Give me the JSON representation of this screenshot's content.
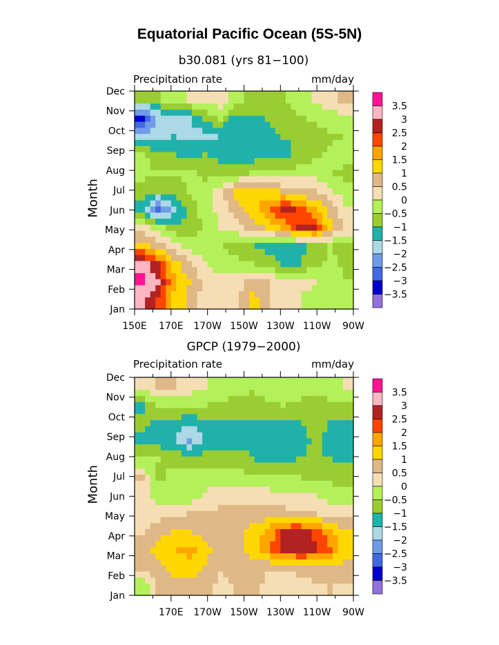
{
  "title": "Equatorial Pacific Ocean (5S-5N)",
  "colors": {
    "levels": [
      -3.5,
      -3,
      -2.5,
      -2,
      -1.5,
      -1,
      -0.5,
      0,
      0.5,
      1,
      1.5,
      2,
      2.5,
      3,
      3.5
    ],
    "fills": [
      "#9370db",
      "#0000cd",
      "#4169e1",
      "#6f9be8",
      "#add8e6",
      "#20b2aa",
      "#9acd32",
      "#b4f05a",
      "#f5deb3",
      "#deb887",
      "#ffd700",
      "#ffa500",
      "#ff4500",
      "#b22222",
      "#ffb6c1",
      "#ff1493"
    ]
  },
  "chart_data": [
    {
      "type": "heatmap",
      "title": "b30.081 (yrs 81−100)",
      "left_label": "Precipitation rate",
      "right_label": "mm/day",
      "ylabel": "Month",
      "x": [
        "150E",
        "170E",
        "170W",
        "150W",
        "130W",
        "110W",
        "90W"
      ],
      "y": [
        "Jan",
        "Feb",
        "Mar",
        "Apr",
        "May",
        "Jun",
        "Jul",
        "Aug",
        "Sep",
        "Oct",
        "Nov",
        "Dec"
      ],
      "colorbar_labels": [
        "3.5",
        "3",
        "2.5",
        "2",
        "1.5",
        "1",
        "0.5",
        "0",
        "−0.5",
        "−1",
        "−1.5",
        "−2",
        "−2.5",
        "−3",
        "−3.5"
      ],
      "values": [
        [
          3.0,
          2.4,
          1.4,
          0.8,
          0.2,
          0.0,
          0.3,
          1.3,
          0.6,
          0.2,
          0.0,
          -0.2,
          -0.3,
          -0.3
        ],
        [
          3.6,
          3.0,
          1.6,
          1.0,
          0.4,
          0.2,
          0.3,
          0.6,
          0.5,
          0.3,
          0.2,
          0.0,
          -0.2,
          -0.5
        ],
        [
          3.4,
          2.6,
          1.4,
          0.6,
          0.0,
          -0.3,
          -0.4,
          -0.5,
          -0.6,
          -1.2,
          -1.1,
          -0.6,
          -0.4,
          -0.6
        ],
        [
          1.3,
          0.8,
          0.2,
          -0.3,
          -0.4,
          -0.5,
          -0.7,
          -0.9,
          -1.3,
          -1.3,
          -1.2,
          -0.8,
          -0.5,
          -0.6
        ],
        [
          0.2,
          -0.3,
          -0.8,
          -0.8,
          -0.4,
          0.0,
          0.3,
          0.6,
          1.2,
          1.6,
          2.5,
          2.7,
          1.2,
          0.3
        ],
        [
          -1.4,
          -2.6,
          -1.8,
          -0.8,
          -0.3,
          0.2,
          0.8,
          1.3,
          1.8,
          2.8,
          2.4,
          1.6,
          0.8,
          0.1
        ],
        [
          -0.7,
          -1.0,
          -0.8,
          -0.5,
          -0.3,
          0.2,
          1.3,
          1.4,
          1.2,
          0.9,
          0.7,
          0.5,
          0.1,
          -0.3
        ],
        [
          -0.4,
          -0.5,
          -0.5,
          -0.4,
          -0.6,
          -0.8,
          -0.7,
          -0.5,
          -0.4,
          -0.4,
          -0.3,
          -0.2,
          -0.5,
          -0.6
        ],
        [
          -0.4,
          -0.8,
          -1.0,
          -1.2,
          -1.0,
          -1.2,
          -1.4,
          -1.3,
          -1.2,
          -1.2,
          -0.8,
          -0.6,
          -0.4,
          -0.3
        ],
        [
          -1.6,
          -1.8,
          -1.5,
          -1.6,
          -1.7,
          -1.5,
          -1.5,
          -1.4,
          -1.2,
          -1.0,
          -1.0,
          -0.8,
          -0.6,
          -0.5
        ],
        [
          -3.2,
          -2.0,
          -1.6,
          -1.6,
          -1.0,
          -0.5,
          -1.3,
          -1.2,
          -1.0,
          -0.8,
          -0.6,
          -0.4,
          -0.3,
          -0.2
        ],
        [
          -1.0,
          -0.6,
          -0.3,
          0.0,
          0.2,
          0.4,
          -0.3,
          -0.6,
          -0.7,
          -0.6,
          -0.2,
          0.0,
          0.4,
          0.6
        ]
      ]
    },
    {
      "type": "heatmap",
      "title": "GPCP (1979−2000)",
      "left_label": "Precipitation rate",
      "right_label": "mm/day",
      "ylabel": "Month",
      "x": [
        "170E",
        "170W",
        "150W",
        "130W",
        "110W",
        "90W"
      ],
      "y": [
        "Jan",
        "Feb",
        "Mar",
        "Apr",
        "May",
        "Jun",
        "Jul",
        "Aug",
        "Sep",
        "Oct",
        "Nov",
        "Dec"
      ],
      "colorbar_labels": [
        "3.5",
        "3",
        "2.5",
        "2",
        "1.5",
        "1",
        "0.5",
        "0",
        "−0.5",
        "−1",
        "−1.5",
        "−2",
        "−2.5",
        "−3",
        "−3.5"
      ],
      "values": [
        [
          -0.4,
          0.6,
          0.7,
          0.8,
          0.6,
          0.4,
          0.5,
          0.6,
          0.4,
          0.3,
          0.3,
          0.4,
          0.5,
          0.4
        ],
        [
          0.6,
          0.8,
          1.2,
          1.3,
          0.9,
          0.5,
          0.6,
          0.7,
          0.5,
          0.5,
          0.6,
          0.8,
          0.9,
          0.7
        ],
        [
          0.7,
          1.2,
          1.4,
          1.7,
          1.3,
          0.7,
          0.8,
          1.3,
          1.8,
          2.6,
          2.7,
          2.6,
          2.0,
          1.2
        ],
        [
          0.4,
          0.8,
          1.0,
          1.0,
          0.8,
          0.5,
          0.6,
          1.2,
          1.6,
          2.5,
          2.8,
          2.4,
          1.7,
          1.0
        ],
        [
          0.0,
          0.3,
          0.4,
          0.5,
          0.5,
          0.6,
          0.6,
          0.7,
          0.8,
          0.7,
          0.6,
          0.5,
          0.4,
          0.3
        ],
        [
          0.4,
          -0.2,
          -0.2,
          -0.3,
          0.0,
          0.3,
          0.4,
          0.3,
          0.2,
          0.1,
          0.0,
          0.0,
          -0.2,
          -0.4
        ],
        [
          0.5,
          -0.6,
          -0.4,
          -0.3,
          -0.2,
          -0.2,
          -0.3,
          -0.3,
          -0.4,
          -0.5,
          -0.5,
          -0.6,
          -0.6,
          -0.7
        ],
        [
          -0.4,
          -0.5,
          -0.6,
          -0.7,
          -0.7,
          -0.8,
          -0.8,
          -1.0,
          -1.2,
          -1.1,
          -1.0,
          -1.0,
          -1.0,
          -1.1
        ],
        [
          -1.1,
          -1.2,
          -1.5,
          -2.1,
          -1.4,
          -1.2,
          -1.2,
          -1.1,
          -1.2,
          -1.3,
          -1.2,
          -0.9,
          -1.1,
          -1.2
        ],
        [
          -0.9,
          -1.1,
          -1.2,
          -1.4,
          -1.2,
          -1.2,
          -1.1,
          -1.1,
          -1.1,
          -1.2,
          -1.1,
          -0.7,
          -1.1,
          -1.1
        ],
        [
          -1.1,
          -0.5,
          -0.4,
          -0.4,
          -0.5,
          -0.6,
          -0.6,
          -0.7,
          -0.6,
          -0.5,
          -0.6,
          -0.8,
          -0.7,
          -0.6
        ],
        [
          0.3,
          0.5,
          0.6,
          0.3,
          0.0,
          -0.2,
          -0.4,
          -0.4,
          -0.3,
          -0.2,
          -0.2,
          -0.2,
          -0.1,
          0.0
        ]
      ]
    }
  ]
}
